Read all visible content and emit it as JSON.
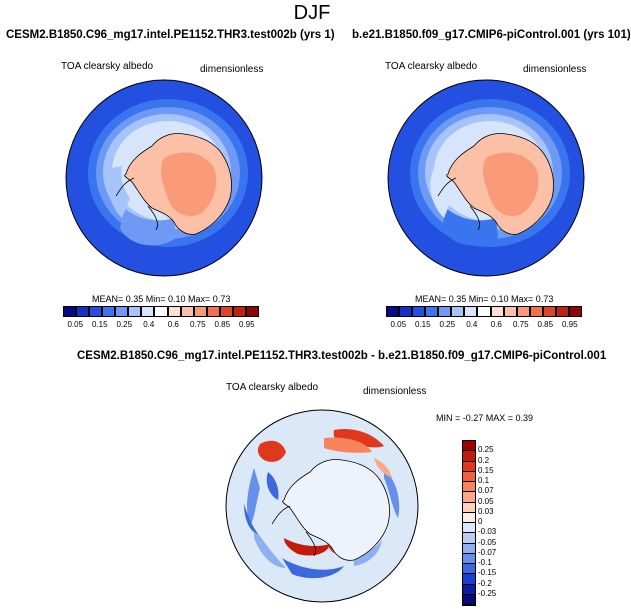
{
  "page_title": "DJF",
  "panels": [
    {
      "title": "CESM2.B1850.C96_mg17.intel.PE1152.THR3.test002b (yrs 1)",
      "variable": "TOA clearsky albedo",
      "units": "dimensionless",
      "stats": "MEAN=  0.35  Min=  0.10  Max=  0.73"
    },
    {
      "title": "b.e21.B1850.f09_g17.CMIP6-piControl.001 (yrs 101)",
      "variable": "TOA clearsky albedo",
      "units": "dimensionless",
      "stats": "MEAN=  0.35  Min=  0.10  Max=  0.73"
    }
  ],
  "diff_panel": {
    "title": "CESM2.B1850.C96_mg17.intel.PE1152.THR3.test002b - b.e21.B1850.f09_g17.CMIP6-piControl.001",
    "variable": "TOA clearsky albedo",
    "units": "dimensionless",
    "stats": "MIN = -0.27 MAX =  0.39"
  },
  "colorbar_main": {
    "labels": [
      "0.05",
      "0.15",
      "0.25",
      "0.4",
      "0.6",
      "0.75",
      "0.85",
      "0.95"
    ],
    "colors": [
      "#08088a",
      "#1530c8",
      "#2350e0",
      "#3a75f0",
      "#6e9af5",
      "#a6c4fa",
      "#d6e4fc",
      "#ffffff",
      "#fde0d0",
      "#fcc0a6",
      "#f99a78",
      "#f2704e",
      "#e04428",
      "#c42010",
      "#8c0606"
    ]
  },
  "colorbar_diff": {
    "labels": [
      "0.25",
      "0.2",
      "0.15",
      "0.1",
      "0.07",
      "0.05",
      "0.03",
      "0",
      "-0.03",
      "-0.05",
      "-0.07",
      "-0.1",
      "-0.15",
      "-0.2",
      "-0.25"
    ],
    "colors": [
      "#a00000",
      "#c41a0a",
      "#e0381c",
      "#f0603a",
      "#f7845c",
      "#fba886",
      "#fdd0b8",
      "#fdeee2",
      "#dbe8f8",
      "#b6cdf4",
      "#8eb0f0",
      "#6690ea",
      "#3c68df",
      "#1a3fcf",
      "#0a1f9e",
      "#060a7a"
    ]
  },
  "legend_names": {
    "main": "albedo colour scale",
    "diff": "albedo difference colour scale"
  }
}
